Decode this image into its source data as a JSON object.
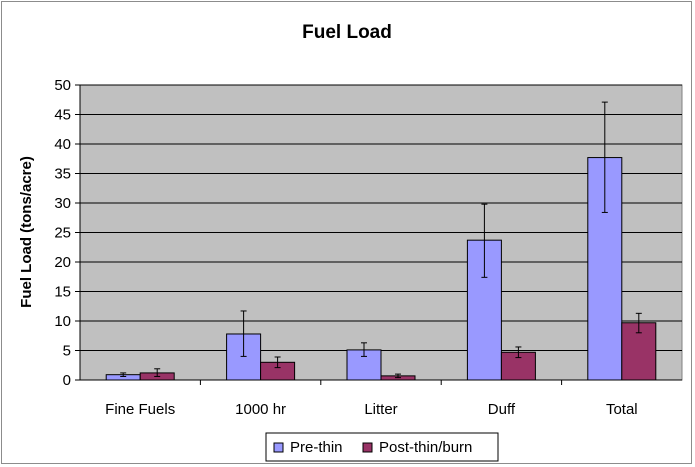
{
  "chart_data": {
    "type": "bar",
    "title": "Fuel Load",
    "xlabel": "",
    "ylabel": "Fuel Load (tons/acre)",
    "ylim": [
      0,
      50
    ],
    "yticks": [
      0,
      5,
      10,
      15,
      20,
      25,
      30,
      35,
      40,
      45,
      50
    ],
    "grid": true,
    "legend_position": "bottom",
    "categories": [
      "Fine Fuels",
      "1000 hr",
      "Litter",
      "Duff",
      "Total"
    ],
    "series": [
      {
        "name": "Pre-thin",
        "color": "#9999ff",
        "values": [
          0.9,
          7.8,
          5.1,
          23.7,
          37.7
        ],
        "error_low": [
          0.6,
          4.0,
          4.0,
          17.4,
          28.4
        ],
        "error_high": [
          1.2,
          11.7,
          6.3,
          29.8,
          47.1
        ]
      },
      {
        "name": "Post-thin/burn",
        "color": "#993366",
        "values": [
          1.2,
          3.0,
          0.7,
          4.7,
          9.7
        ],
        "error_low": [
          0.6,
          2.1,
          0.4,
          3.8,
          8.0
        ],
        "error_high": [
          1.9,
          3.9,
          1.0,
          5.6,
          11.3
        ]
      }
    ],
    "plot_background": "#c0c0c0"
  }
}
